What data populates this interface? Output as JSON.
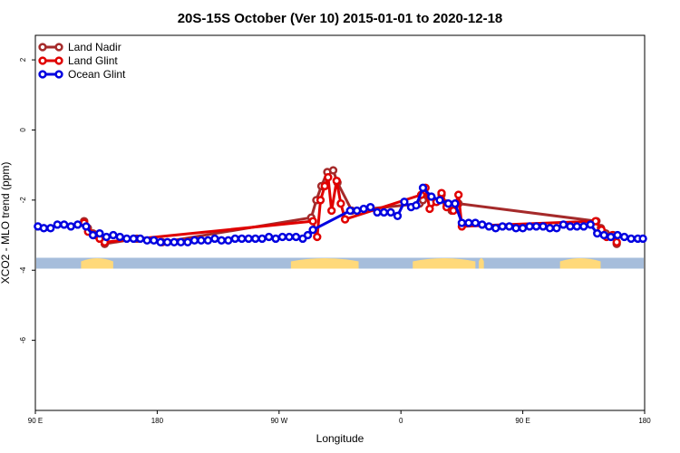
{
  "chart_data": {
    "type": "line",
    "title": "20S-15S October (Ver 10)   2015-01-01 to 2020-12-18",
    "xlabel": "Longitude",
    "ylabel": "XCO2 - MLO trend (ppm)",
    "xlim": [
      90,
      450
    ],
    "ylim": [
      -8.0,
      2.7
    ],
    "x_ticks": [
      {
        "value": 90,
        "label": "90 E"
      },
      {
        "value": 162,
        "label": "180"
      },
      {
        "value": 234,
        "label": "90 W"
      },
      {
        "value": 306,
        "label": "0"
      },
      {
        "value": 378,
        "label": "90 E"
      },
      {
        "value": 450,
        "label": "180"
      }
    ],
    "y_ticks": [
      {
        "value": 2,
        "label": "2"
      },
      {
        "value": 0,
        "label": "0"
      },
      {
        "value": -2,
        "label": "-2"
      },
      {
        "value": -4,
        "label": "-4"
      },
      {
        "value": -6,
        "label": "-6"
      }
    ],
    "grid": false,
    "legend_position": "top-left",
    "land_mask": {
      "y": -3.8,
      "ocean_color": "#a6bddb",
      "land_color": "#ffd97a",
      "land_segments": [
        [
          117,
          136
        ],
        [
          241,
          281
        ],
        [
          313,
          350
        ],
        [
          352,
          355
        ],
        [
          400,
          424
        ]
      ]
    },
    "series": [
      {
        "name": "Land Nadir",
        "color": "#a52a2a",
        "x": [
          118.8,
          121.0,
          124.0,
          127.5,
          131.0,
          150.0,
          165.0,
          253.0,
          256.0,
          259.0,
          262.5,
          266.0,
          268.5,
          277.0,
          317.0,
          319.0,
          322.0,
          327.0,
          330.0,
          333.0,
          336.0,
          340.0,
          421.5,
          424.2,
          427.0,
          431.5,
          433.5
        ],
        "y": [
          -2.6,
          -2.8,
          -2.95,
          -3.05,
          -3.25,
          -3.1,
          -3.2,
          -2.5,
          -2.0,
          -1.6,
          -1.2,
          -1.15,
          -1.5,
          -2.3,
          -2.1,
          -2.0,
          -1.9,
          -2.05,
          -1.85,
          -2.1,
          -2.3,
          -2.1,
          -2.6,
          -2.8,
          -2.95,
          -3.0,
          -3.25
        ]
      },
      {
        "name": "Land Glint",
        "color": "#e00000",
        "x": [
          118.8,
          121.2,
          124.5,
          128.0,
          131.0,
          254.0,
          256.5,
          258.5,
          261.0,
          263.0,
          265.0,
          268.0,
          270.5,
          273.0,
          318.0,
          320.5,
          323.0,
          327.0,
          330.0,
          333.0,
          337.0,
          340.0,
          342.0,
          421.0,
          424.5,
          427.5,
          431.0,
          433.5
        ],
        "y": [
          -2.65,
          -2.9,
          -3.0,
          -3.1,
          -3.2,
          -2.6,
          -3.05,
          -2.0,
          -1.6,
          -1.35,
          -2.3,
          -1.45,
          -2.1,
          -2.55,
          -1.85,
          -1.65,
          -2.25,
          -2.05,
          -1.8,
          -2.2,
          -2.3,
          -1.85,
          -2.75,
          -2.6,
          -2.85,
          -3.05,
          -3.0,
          -3.2
        ]
      },
      {
        "name": "Ocean Glint",
        "color": "#0000e0",
        "x": [
          91.5,
          95.0,
          99.0,
          103.0,
          107.0,
          111.0,
          115.0,
          120.0,
          124.0,
          128.0,
          132.0,
          136.0,
          140.0,
          144.0,
          148.0,
          152.0,
          156.0,
          160.0,
          164.0,
          168.0,
          172.0,
          176.0,
          180.0,
          184.0,
          188.0,
          192.0,
          196.0,
          200.0,
          204.0,
          208.0,
          212.0,
          216.0,
          220.0,
          224.0,
          228.0,
          232.0,
          236.0,
          240.0,
          244.0,
          248.0,
          251.0,
          254.0,
          276.0,
          280.0,
          284.0,
          288.0,
          292.0,
          296.0,
          300.0,
          304.0,
          308.0,
          312.0,
          315.0,
          319.0,
          324.0,
          329.0,
          334.0,
          338.0,
          342.0,
          346.0,
          350.0,
          354.0,
          358.0,
          362.0,
          366.0,
          370.0,
          374.0,
          378.0,
          382.0,
          386.0,
          390.0,
          394.0,
          398.0,
          402.0,
          406.0,
          410.0,
          414.0,
          418.0,
          422.0,
          426.0,
          430.0,
          434.0,
          438.0,
          442.0,
          446.0,
          449.0
        ],
        "y": [
          -2.75,
          -2.8,
          -2.8,
          -2.7,
          -2.7,
          -2.75,
          -2.7,
          -2.75,
          -3.0,
          -2.95,
          -3.05,
          -3.0,
          -3.05,
          -3.1,
          -3.1,
          -3.1,
          -3.15,
          -3.15,
          -3.2,
          -3.2,
          -3.2,
          -3.2,
          -3.2,
          -3.15,
          -3.15,
          -3.15,
          -3.1,
          -3.15,
          -3.15,
          -3.1,
          -3.1,
          -3.1,
          -3.1,
          -3.1,
          -3.05,
          -3.1,
          -3.05,
          -3.05,
          -3.05,
          -3.1,
          -3.0,
          -2.85,
          -2.3,
          -2.3,
          -2.25,
          -2.2,
          -2.35,
          -2.35,
          -2.35,
          -2.45,
          -2.05,
          -2.2,
          -2.15,
          -1.65,
          -1.9,
          -2.0,
          -2.1,
          -2.1,
          -2.65,
          -2.65,
          -2.65,
          -2.7,
          -2.75,
          -2.8,
          -2.75,
          -2.75,
          -2.8,
          -2.8,
          -2.75,
          -2.75,
          -2.75,
          -2.8,
          -2.8,
          -2.7,
          -2.75,
          -2.75,
          -2.75,
          -2.7,
          -2.95,
          -3.0,
          -3.05,
          -3.0,
          -3.05,
          -3.1,
          -3.1,
          -3.1
        ]
      }
    ]
  }
}
